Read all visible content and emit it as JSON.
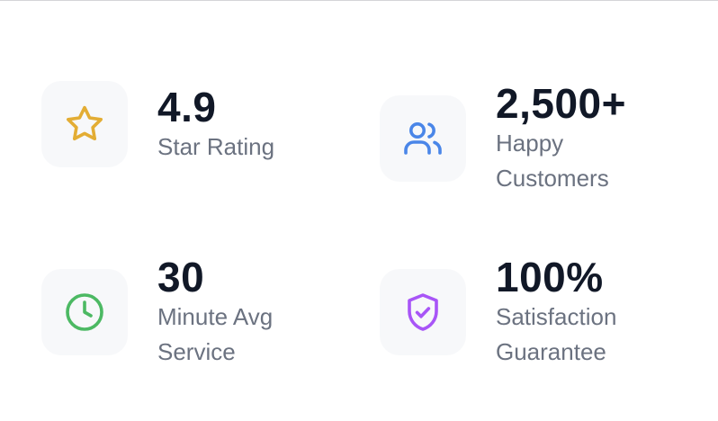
{
  "stats": [
    {
      "value": "4.9",
      "label": "Star Rating"
    },
    {
      "value": "2,500+",
      "label": "Happy Customers"
    },
    {
      "value": "30",
      "label": "Minute Avg Service"
    },
    {
      "value": "100%",
      "label": "Satisfaction Guarantee"
    }
  ]
}
